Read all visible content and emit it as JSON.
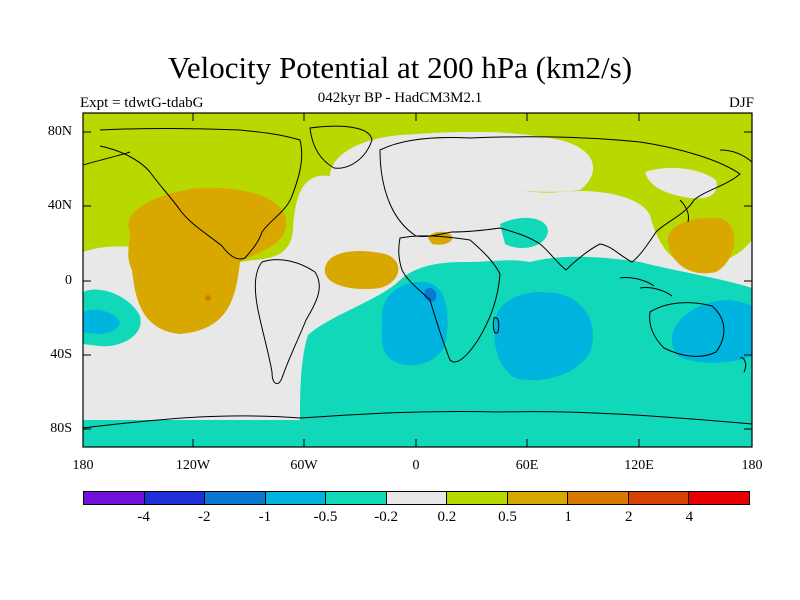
{
  "title": "Velocity Potential at 200 hPa (km2/s)",
  "subtitle": "042kyr BP - HadCM3M2.1",
  "expt_label": "Expt = tdwtG-tdabG",
  "season": "DJF",
  "lat_labels": [
    "80N",
    "40N",
    "0",
    "40S",
    "80S"
  ],
  "lon_labels": [
    "180",
    "120W",
    "60W",
    "0",
    "60E",
    "120E",
    "180"
  ],
  "colorbar": {
    "colors": [
      "#7010d8",
      "#2030d8",
      "#0a78d0",
      "#00b4e0",
      "#10d8b8",
      "#e8e8e8",
      "#b8d800",
      "#d8a800",
      "#d87800",
      "#d84000",
      "#e80000"
    ],
    "labels": [
      "-4",
      "-2",
      "-1",
      "-0.5",
      "-0.2",
      "0.2",
      "0.5",
      "1",
      "2",
      "4"
    ]
  }
}
